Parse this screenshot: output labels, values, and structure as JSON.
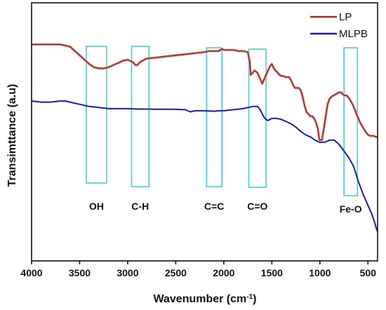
{
  "chart_data": {
    "type": "line",
    "xlabel": "Wavenumber (cm",
    "xlabel_sup": "-1",
    "xlabel_tail": ")",
    "ylabel": "Transimttance (a.u)",
    "xlim": [
      4000,
      400
    ],
    "ylim": [
      0,
      1
    ],
    "x_reversed": true,
    "xticks": [
      4000,
      3500,
      3000,
      2500,
      2000,
      1500,
      1000,
      500
    ],
    "grid": false,
    "legend_position": "top-right",
    "series": [
      {
        "name": "LP",
        "color": "#a0301e",
        "x": [
          4000,
          3900,
          3800,
          3700,
          3600,
          3550,
          3500,
          3450,
          3400,
          3350,
          3300,
          3250,
          3200,
          3150,
          3100,
          3050,
          3000,
          2950,
          2920,
          2900,
          2880,
          2850,
          2800,
          2700,
          2600,
          2500,
          2400,
          2300,
          2200,
          2150,
          2100,
          2050,
          2020,
          2000,
          1950,
          1900,
          1850,
          1800,
          1750,
          1730,
          1720,
          1700,
          1680,
          1650,
          1620,
          1600,
          1580,
          1560,
          1540,
          1520,
          1500,
          1480,
          1460,
          1440,
          1420,
          1400,
          1380,
          1360,
          1340,
          1320,
          1300,
          1280,
          1260,
          1240,
          1220,
          1200,
          1180,
          1160,
          1140,
          1120,
          1100,
          1080,
          1060,
          1040,
          1020,
          1010,
          1000,
          980,
          960,
          940,
          920,
          900,
          880,
          860,
          840,
          820,
          800,
          780,
          760,
          740,
          720,
          700,
          680,
          660,
          640,
          620,
          600,
          580,
          560,
          540,
          520,
          500,
          480,
          460,
          440,
          420,
          400
        ],
        "y": [
          0.86,
          0.86,
          0.86,
          0.86,
          0.85,
          0.83,
          0.81,
          0.79,
          0.77,
          0.755,
          0.75,
          0.75,
          0.755,
          0.765,
          0.775,
          0.785,
          0.79,
          0.78,
          0.765,
          0.765,
          0.775,
          0.785,
          0.795,
          0.8,
          0.805,
          0.81,
          0.815,
          0.82,
          0.825,
          0.83,
          0.83,
          0.83,
          0.84,
          0.835,
          0.835,
          0.835,
          0.83,
          0.83,
          0.825,
          0.78,
          0.72,
          0.73,
          0.74,
          0.73,
          0.7,
          0.68,
          0.7,
          0.72,
          0.74,
          0.76,
          0.77,
          0.75,
          0.74,
          0.73,
          0.72,
          0.715,
          0.715,
          0.71,
          0.71,
          0.71,
          0.695,
          0.675,
          0.66,
          0.66,
          0.66,
          0.65,
          0.62,
          0.58,
          0.55,
          0.54,
          0.53,
          0.53,
          0.52,
          0.5,
          0.47,
          0.43,
          0.42,
          0.42,
          0.47,
          0.53,
          0.585,
          0.61,
          0.62,
          0.625,
          0.63,
          0.635,
          0.64,
          0.64,
          0.63,
          0.625,
          0.625,
          0.615,
          0.6,
          0.585,
          0.565,
          0.54,
          0.52,
          0.5,
          0.485,
          0.47,
          0.455,
          0.445,
          0.44,
          0.44,
          0.44,
          0.435,
          0.435
        ]
      },
      {
        "name": "MLPB",
        "color": "#1a1ab8",
        "x": [
          4000,
          3900,
          3800,
          3700,
          3650,
          3600,
          3500,
          3400,
          3300,
          3200,
          3100,
          3000,
          2900,
          2800,
          2700,
          2600,
          2500,
          2400,
          2350,
          2300,
          2200,
          2100,
          2050,
          2000,
          1900,
          1800,
          1700,
          1650,
          1620,
          1600,
          1580,
          1560,
          1540,
          1520,
          1500,
          1450,
          1400,
          1350,
          1300,
          1250,
          1200,
          1150,
          1100,
          1050,
          1000,
          950,
          900,
          850,
          800,
          750,
          700,
          650,
          600,
          550,
          500,
          460,
          430,
          410,
          400
        ],
        "y": [
          0.6,
          0.595,
          0.595,
          0.6,
          0.6,
          0.595,
          0.585,
          0.575,
          0.57,
          0.565,
          0.565,
          0.565,
          0.563,
          0.563,
          0.562,
          0.562,
          0.562,
          0.56,
          0.55,
          0.555,
          0.555,
          0.553,
          0.555,
          0.555,
          0.56,
          0.565,
          0.575,
          0.575,
          0.56,
          0.54,
          0.525,
          0.515,
          0.51,
          0.515,
          0.52,
          0.52,
          0.515,
          0.505,
          0.495,
          0.48,
          0.46,
          0.445,
          0.435,
          0.42,
          0.41,
          0.41,
          0.42,
          0.42,
          0.4,
          0.37,
          0.34,
          0.3,
          0.23,
          0.17,
          0.12,
          0.08,
          0.04,
          0.01,
          0.0
        ]
      }
    ],
    "annotations": [
      {
        "label": "OH",
        "x_from": 3430,
        "x_to": 3220
      },
      {
        "label": "C-H",
        "x_from": 2960,
        "x_to": 2780
      },
      {
        "label": "C=C",
        "x_from": 2180,
        "x_to": 2020
      },
      {
        "label": "C=O",
        "x_from": 1740,
        "x_to": 1560
      },
      {
        "label": "Fe-O",
        "x_from": 750,
        "x_to": 610
      }
    ]
  }
}
